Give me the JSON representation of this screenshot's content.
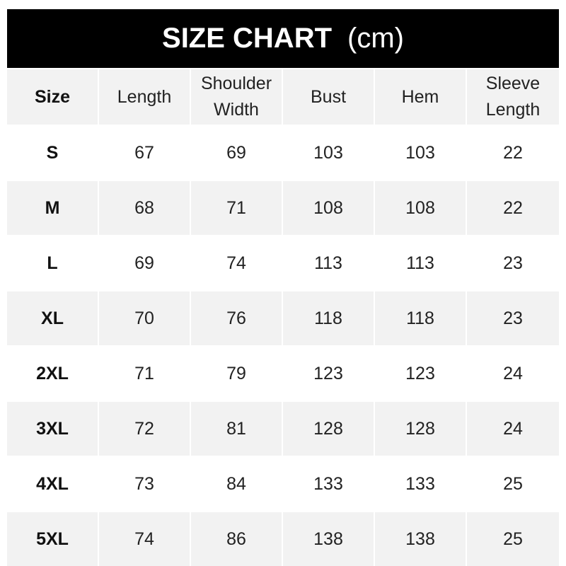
{
  "title": {
    "main": "SIZE CHART",
    "unit": "(cm)"
  },
  "headers": [
    "Size",
    "Length",
    "Shoulder Width",
    "Bust",
    "Hem",
    "Sleeve Length"
  ],
  "rows": [
    [
      "S",
      "67",
      "69",
      "103",
      "103",
      "22"
    ],
    [
      "M",
      "68",
      "71",
      "108",
      "108",
      "22"
    ],
    [
      "L",
      "69",
      "74",
      "113",
      "113",
      "23"
    ],
    [
      "XL",
      "70",
      "76",
      "118",
      "118",
      "23"
    ],
    [
      "2XL",
      "71",
      "79",
      "123",
      "123",
      "24"
    ],
    [
      "3XL",
      "72",
      "81",
      "128",
      "128",
      "24"
    ],
    [
      "4XL",
      "73",
      "84",
      "133",
      "133",
      "25"
    ],
    [
      "5XL",
      "74",
      "86",
      "138",
      "138",
      "25"
    ]
  ]
}
